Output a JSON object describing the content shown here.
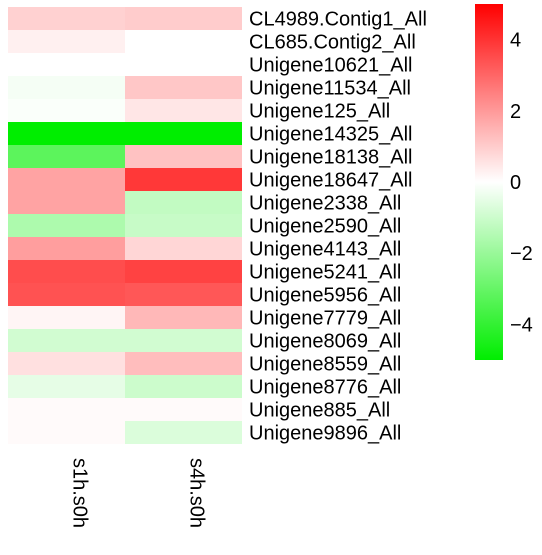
{
  "chart_data": {
    "type": "heatmap",
    "columns": [
      "s1h.s0h",
      "s4h.s0h"
    ],
    "rows": [
      "CL4989.Contig1_All",
      "CL685.Contig2_All",
      "Unigene10621_All",
      "Unigene11534_All",
      "Unigene125_All",
      "Unigene14325_All",
      "Unigene18138_All",
      "Unigene18647_All",
      "Unigene2338_All",
      "Unigene2590_All",
      "Unigene4143_All",
      "Unigene5241_All",
      "Unigene5956_All",
      "Unigene7779_All",
      "Unigene8069_All",
      "Unigene8559_All",
      "Unigene8776_All",
      "Unigene885_All",
      "Unigene9896_All"
    ],
    "values": [
      [
        0.9,
        1.0
      ],
      [
        0.3,
        0.0
      ],
      [
        0.0,
        0.0
      ],
      [
        -0.2,
        1.1
      ],
      [
        -0.1,
        0.5
      ],
      [
        -5.0,
        -5.0
      ],
      [
        -3.2,
        1.2
      ],
      [
        1.8,
        3.9
      ],
      [
        1.8,
        -1.2
      ],
      [
        -1.6,
        -1.1
      ],
      [
        1.9,
        0.8
      ],
      [
        3.5,
        3.7
      ],
      [
        3.4,
        3.3
      ],
      [
        0.2,
        1.4
      ],
      [
        -0.9,
        -0.9
      ],
      [
        0.6,
        1.3
      ],
      [
        -0.5,
        -1.0
      ],
      [
        0.1,
        0.1
      ],
      [
        0.1,
        -0.7
      ]
    ],
    "colorbar": {
      "ticks": [
        4,
        2,
        0,
        -2,
        -4
      ],
      "tick_labels": [
        "4",
        "2",
        "0",
        "−2",
        "−4"
      ],
      "range": [
        -5,
        5
      ]
    },
    "colors": {
      "low": "#00ee00",
      "mid": "#ffffff",
      "high": "#ff0000"
    }
  }
}
